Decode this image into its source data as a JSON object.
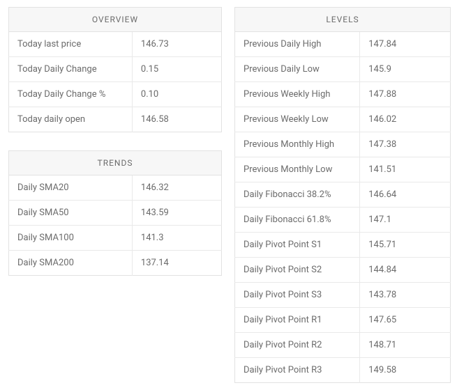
{
  "overview": {
    "title": "OVERVIEW",
    "rows": [
      {
        "label": "Today last price",
        "value": "146.73"
      },
      {
        "label": "Today Daily Change",
        "value": "0.15"
      },
      {
        "label": "Today Daily Change %",
        "value": "0.10"
      },
      {
        "label": "Today daily open",
        "value": "146.58"
      }
    ]
  },
  "trends": {
    "title": "TRENDS",
    "rows": [
      {
        "label": "Daily SMA20",
        "value": "146.32"
      },
      {
        "label": "Daily SMA50",
        "value": "143.59"
      },
      {
        "label": "Daily SMA100",
        "value": "141.3"
      },
      {
        "label": "Daily SMA200",
        "value": "137.14"
      }
    ]
  },
  "levels": {
    "title": "LEVELS",
    "rows": [
      {
        "label": "Previous Daily High",
        "value": "147.84"
      },
      {
        "label": "Previous Daily Low",
        "value": "145.9"
      },
      {
        "label": "Previous Weekly High",
        "value": "147.88"
      },
      {
        "label": "Previous Weekly Low",
        "value": "146.02"
      },
      {
        "label": "Previous Monthly High",
        "value": "147.38"
      },
      {
        "label": "Previous Monthly Low",
        "value": "141.51"
      },
      {
        "label": "Daily Fibonacci 38.2%",
        "value": "146.64"
      },
      {
        "label": "Daily Fibonacci 61.8%",
        "value": "147.1"
      },
      {
        "label": "Daily Pivot Point S1",
        "value": "145.71"
      },
      {
        "label": "Daily Pivot Point S2",
        "value": "144.84"
      },
      {
        "label": "Daily Pivot Point S3",
        "value": "143.78"
      },
      {
        "label": "Daily Pivot Point R1",
        "value": "147.65"
      },
      {
        "label": "Daily Pivot Point R2",
        "value": "148.71"
      },
      {
        "label": "Daily Pivot Point R3",
        "value": "149.58"
      }
    ]
  },
  "style": {
    "header_bg": "#f7f7f7",
    "border_color": "#e2e2e2",
    "inner_border_color": "#e9e9e9",
    "text_color": "#6b6b6b",
    "header_fontsize": 12,
    "cell_fontsize": 13,
    "left_col_width": 306,
    "right_col_width": 310,
    "gap": 18
  }
}
